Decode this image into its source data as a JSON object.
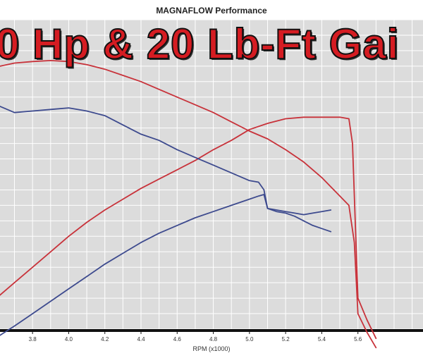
{
  "chart_data": {
    "type": "line",
    "title": "MAGNAFLOW Performance",
    "overlay_text": "0 Hp & 20 Lb-Ft Gai",
    "xlabel": "RPM (x1000)",
    "xlim": [
      3.62,
      5.96
    ],
    "ylim": [
      0,
      100
    ],
    "x_ticks": [
      "3.8",
      "4.0",
      "4.2",
      "4.4",
      "4.6",
      "4.8",
      "5.0",
      "5.2",
      "5.4",
      "5.6"
    ],
    "grid": true,
    "colors": {
      "red": "#c8323a",
      "blue": "#3d4a8e",
      "grid": "#ffffff",
      "background": "#dcdcdc"
    },
    "series": [
      {
        "color": "red",
        "x": [
          3.62,
          3.7,
          3.8,
          3.9,
          4.0,
          4.1,
          4.2,
          4.3,
          4.4,
          4.5,
          4.6,
          4.7,
          4.8,
          4.9,
          5.0,
          5.1,
          5.2,
          5.3,
          5.4,
          5.5,
          5.55,
          5.58,
          5.6,
          5.65,
          5.7
        ],
        "y": [
          85,
          86,
          86.5,
          86.8,
          86.5,
          85.5,
          84,
          82,
          80,
          77.5,
          75,
          72.5,
          70,
          67,
          64,
          61.5,
          58,
          54,
          49,
          43,
          40,
          28,
          5,
          -1,
          -6
        ]
      },
      {
        "color": "red",
        "x": [
          3.62,
          3.7,
          3.8,
          3.9,
          4.0,
          4.1,
          4.2,
          4.3,
          4.4,
          4.5,
          4.6,
          4.7,
          4.8,
          4.9,
          5.0,
          5.1,
          5.2,
          5.3,
          5.4,
          5.5,
          5.55,
          5.57,
          5.6,
          5.65,
          5.7
        ],
        "y": [
          11,
          15,
          20,
          25,
          30,
          34.5,
          38.5,
          42,
          45.5,
          48.5,
          51.5,
          54.5,
          58,
          61,
          64.5,
          66.5,
          68,
          68.5,
          68.5,
          68.5,
          68,
          60,
          10,
          3,
          -3
        ]
      },
      {
        "color": "blue",
        "x": [
          3.62,
          3.7,
          3.8,
          3.9,
          4.0,
          4.1,
          4.2,
          4.3,
          4.4,
          4.5,
          4.6,
          4.7,
          4.8,
          4.9,
          5.0,
          5.05,
          5.08,
          5.1,
          5.15,
          5.2,
          5.25,
          5.3,
          5.35,
          5.4,
          5.45
        ],
        "y": [
          72,
          70,
          70.5,
          71,
          71.5,
          70.5,
          69,
          66,
          63,
          61,
          58,
          55.5,
          53,
          50.5,
          48,
          47.5,
          45,
          39,
          38,
          37.5,
          36.5,
          35,
          33.5,
          32.5,
          31.5
        ]
      },
      {
        "color": "blue",
        "x": [
          3.62,
          3.7,
          3.8,
          3.9,
          4.0,
          4.1,
          4.2,
          4.3,
          4.4,
          4.5,
          4.6,
          4.7,
          4.8,
          4.9,
          5.0,
          5.05,
          5.08,
          5.1,
          5.15,
          5.2,
          5.25,
          5.3,
          5.35,
          5.4,
          5.45
        ],
        "y": [
          -2,
          1,
          5,
          9,
          13,
          17,
          21,
          24.5,
          28,
          31,
          33.5,
          36,
          38,
          40,
          42,
          43,
          43.5,
          39,
          38.5,
          38,
          37.5,
          37,
          37.5,
          38,
          38.5
        ]
      }
    ]
  }
}
